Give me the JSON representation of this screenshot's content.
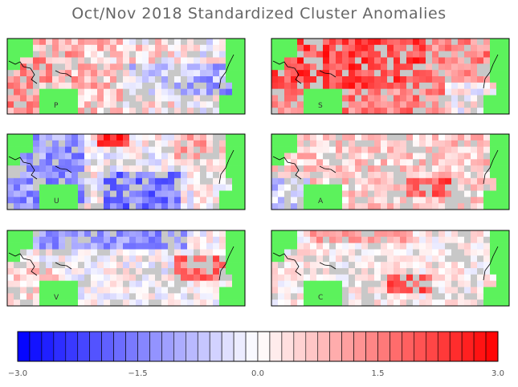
{
  "title": "Oct/Nov 2018 Standardized Cluster Anomalies",
  "colors": {
    "land": "#5cf25c",
    "no_data": "#c8c8c8",
    "neg_max": "#0000ff",
    "neutral": "#ffffff",
    "pos_max": "#ff0000",
    "frame": "#000000",
    "tick_label": "#555555"
  },
  "chart_data": {
    "type": "heatmap",
    "description_of_fields": "Six map panels of standardized cluster anomalies over the tropical Pacific; each panel labeled by its cluster letter",
    "panels": [
      {
        "label": "P",
        "column": "left",
        "row": 1,
        "dominant_sign": "positive west, mixed east"
      },
      {
        "label": "S",
        "column": "right",
        "row": 1,
        "dominant_sign": "strongly positive"
      },
      {
        "label": "U",
        "column": "left",
        "row": 2,
        "dominant_sign": "negative west and central, positive north"
      },
      {
        "label": "A",
        "column": "right",
        "row": 2,
        "dominant_sign": "mostly positive"
      },
      {
        "label": "V",
        "column": "left",
        "row": 3,
        "dominant_sign": "negative north, positive east"
      },
      {
        "label": "C",
        "column": "right",
        "row": 3,
        "dominant_sign": "weakly positive, strong central spot"
      }
    ],
    "colorbar": {
      "min": -3.0,
      "max": 3.0,
      "ticks": [
        -3.0,
        -1.5,
        0.0,
        1.5,
        3.0
      ],
      "tick_labels": [
        "−3.0",
        "−1.5",
        "0.0",
        "1.5",
        "3.0"
      ],
      "n_bins": 40
    }
  }
}
